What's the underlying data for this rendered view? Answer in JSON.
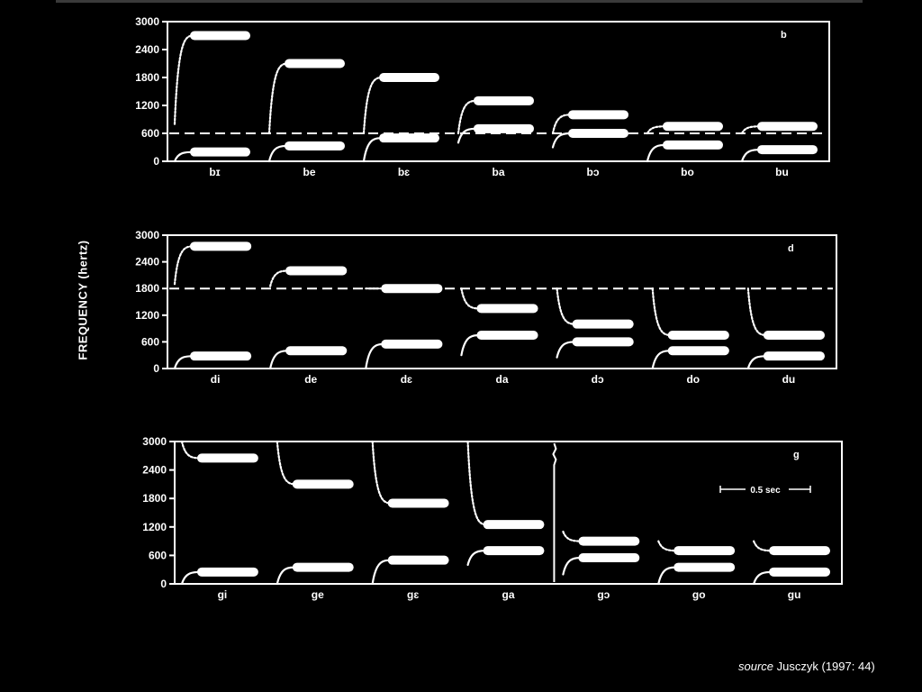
{
  "figure": {
    "ylabel": "FREQUENCY (hertz)",
    "source_prefix": "source",
    "source_text": "Jusczyk (1997: 44)"
  },
  "chart_data": [
    {
      "type": "line",
      "panel": "b",
      "ylim": [
        0,
        3000
      ],
      "yticks": [
        "3000",
        "2400",
        "1800",
        "1200",
        "600",
        "0"
      ],
      "locus_hz": 600,
      "categories": [
        "bɪ",
        "be",
        "bɛ",
        "ba",
        "bɔ",
        "bo",
        "bu"
      ],
      "series": [
        {
          "values_start": [
            800,
            600,
            600,
            600,
            600,
            600,
            600
          ],
          "values_steady": [
            2700,
            2100,
            1800,
            1300,
            1000,
            750,
            750
          ]
        },
        {
          "values_start": [
            0,
            0,
            0,
            400,
            300,
            0,
            0
          ],
          "values_steady": [
            200,
            330,
            500,
            700,
            600,
            350,
            250
          ]
        }
      ]
    },
    {
      "type": "line",
      "panel": "d",
      "ylim": [
        0,
        3000
      ],
      "yticks": [
        "3000",
        "2400",
        "1800",
        "1200",
        "600",
        "0"
      ],
      "locus_hz": 1800,
      "categories": [
        "di",
        "de",
        "dɛ",
        "da",
        "dɔ",
        "do",
        "du"
      ],
      "series": [
        {
          "values_start": [
            1900,
            1850,
            1800,
            1800,
            1800,
            1800,
            1800
          ],
          "values_steady": [
            2750,
            2200,
            1800,
            1350,
            1000,
            750,
            750
          ]
        },
        {
          "values_start": [
            0,
            0,
            0,
            300,
            250,
            0,
            0
          ],
          "values_steady": [
            280,
            400,
            550,
            750,
            600,
            400,
            280
          ]
        }
      ]
    },
    {
      "type": "line",
      "panel": "g",
      "ylim": [
        0,
        3000
      ],
      "yticks": [
        "3000",
        "2400",
        "1800",
        "1200",
        "600",
        "0"
      ],
      "locus_hz": 3000,
      "scale_label": "0.5 sec",
      "categories": [
        "gi",
        "ge",
        "gɛ",
        "ga",
        "gɔ",
        "go",
        "gu"
      ],
      "series": [
        {
          "values_start": [
            3000,
            3000,
            3000,
            3000,
            1100,
            900,
            900
          ],
          "values_steady": [
            2650,
            2100,
            1700,
            1250,
            900,
            700,
            700
          ]
        },
        {
          "values_start": [
            0,
            0,
            0,
            400,
            200,
            0,
            0
          ],
          "values_steady": [
            250,
            350,
            500,
            700,
            550,
            350,
            250
          ]
        }
      ]
    }
  ]
}
